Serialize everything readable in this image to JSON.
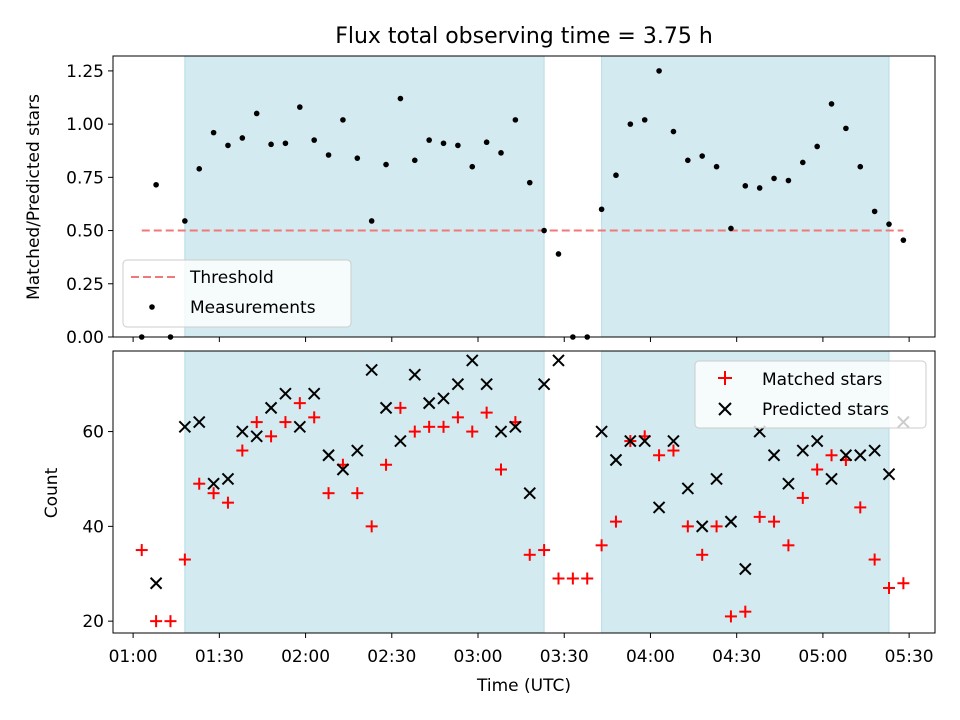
{
  "figure": {
    "title": "Flux total observing time = 3.75 h"
  },
  "chart_data": [
    {
      "type": "scatter",
      "title": "Flux total observing time = 3.75 h",
      "xlabel": "",
      "ylabel": "Matched/Predicted stars",
      "xlim": [
        "00:53",
        "05:39"
      ],
      "ylim": [
        0,
        1.32
      ],
      "yticks": [
        0.0,
        0.25,
        0.5,
        0.75,
        1.0,
        1.25
      ],
      "ytick_labels": [
        "0.00",
        "0.25",
        "0.50",
        "0.75",
        "1.00",
        "1.25"
      ],
      "xticks": [
        "01:00",
        "01:30",
        "02:00",
        "02:30",
        "03:00",
        "03:30",
        "04:00",
        "04:30",
        "05:00",
        "05:30"
      ],
      "legend": {
        "position": "lower-left",
        "entries": [
          "Threshold",
          "Measurements"
        ]
      },
      "shaded_spans": [
        {
          "start": "01:18",
          "end": "03:23"
        },
        {
          "start": "03:43",
          "end": "05:23"
        }
      ],
      "threshold": {
        "name": "Threshold",
        "value": 0.5,
        "x_start": "01:03",
        "x_end": "05:28",
        "color": "#f07878",
        "style": "dashed"
      },
      "series": [
        {
          "name": "Measurements",
          "color": "#000000",
          "marker": "dot",
          "x": [
            "01:03",
            "01:08",
            "01:13",
            "01:18",
            "01:23",
            "01:28",
            "01:33",
            "01:38",
            "01:43",
            "01:48",
            "01:53",
            "01:58",
            "02:03",
            "02:08",
            "02:13",
            "02:18",
            "02:23",
            "02:28",
            "02:33",
            "02:38",
            "02:43",
            "02:48",
            "02:53",
            "02:58",
            "03:03",
            "03:08",
            "03:13",
            "03:18",
            "03:23",
            "03:28",
            "03:33",
            "03:38",
            "03:43",
            "03:48",
            "03:53",
            "03:58",
            "04:03",
            "04:08",
            "04:13",
            "04:18",
            "04:23",
            "04:28",
            "04:33",
            "04:38",
            "04:43",
            "04:48",
            "04:53",
            "04:58",
            "05:03",
            "05:08",
            "05:13",
            "05:18",
            "05:23",
            "05:28"
          ],
          "y": [
            0.0,
            0.715,
            0.0,
            0.545,
            0.79,
            0.96,
            0.9,
            0.935,
            1.05,
            0.905,
            0.91,
            1.08,
            0.925,
            0.855,
            1.02,
            0.84,
            0.545,
            0.81,
            1.12,
            0.83,
            0.925,
            0.91,
            0.9,
            0.8,
            0.915,
            0.865,
            1.02,
            0.725,
            0.5,
            0.39,
            0.0,
            0.0,
            0.6,
            0.76,
            1.0,
            1.02,
            1.25,
            0.965,
            0.83,
            0.85,
            0.8,
            0.51,
            0.71,
            0.7,
            0.745,
            0.735,
            0.82,
            0.895,
            1.095,
            0.98,
            0.8,
            0.59,
            0.53,
            0.455
          ]
        }
      ]
    },
    {
      "type": "scatter",
      "title": "",
      "xlabel": "Time (UTC)",
      "ylabel": "Count",
      "xlim": [
        "00:53",
        "05:39"
      ],
      "ylim": [
        17.5,
        77
      ],
      "yticks": [
        20,
        40,
        60
      ],
      "ytick_labels": [
        "20",
        "40",
        "60"
      ],
      "xticks": [
        "01:00",
        "01:30",
        "02:00",
        "02:30",
        "03:00",
        "03:30",
        "04:00",
        "04:30",
        "05:00",
        "05:30"
      ],
      "legend": {
        "position": "upper-right",
        "entries": [
          "Matched stars",
          "Predicted stars"
        ]
      },
      "shaded_spans": [
        {
          "start": "01:18",
          "end": "03:23"
        },
        {
          "start": "03:43",
          "end": "05:23"
        }
      ],
      "series": [
        {
          "name": "Matched stars",
          "color": "#ff0000",
          "marker": "plus",
          "x": [
            "01:03",
            "01:08",
            "01:13",
            "01:18",
            "01:23",
            "01:28",
            "01:33",
            "01:38",
            "01:43",
            "01:48",
            "01:53",
            "01:58",
            "02:03",
            "02:08",
            "02:13",
            "02:18",
            "02:23",
            "02:28",
            "02:33",
            "02:38",
            "02:43",
            "02:48",
            "02:53",
            "02:58",
            "03:03",
            "03:08",
            "03:13",
            "03:18",
            "03:23",
            "03:28",
            "03:33",
            "03:38",
            "03:43",
            "03:48",
            "03:53",
            "03:58",
            "04:03",
            "04:08",
            "04:13",
            "04:18",
            "04:23",
            "04:28",
            "04:33",
            "04:38",
            "04:43",
            "04:48",
            "04:53",
            "04:58",
            "05:03",
            "05:08",
            "05:13",
            "05:18",
            "05:23",
            "05:28"
          ],
          "y": [
            35,
            20,
            20,
            33,
            49,
            47,
            45,
            56,
            62,
            59,
            62,
            66,
            63,
            47,
            53,
            47,
            40,
            53,
            65,
            60,
            61,
            61,
            63,
            60,
            64,
            52,
            62,
            34,
            35,
            29,
            29,
            29,
            36,
            41,
            58,
            59,
            55,
            56,
            40,
            34,
            40,
            21,
            22,
            42,
            41,
            36,
            46,
            52,
            55,
            54,
            44,
            33,
            27,
            28
          ]
        },
        {
          "name": "Predicted stars",
          "color": "#000000",
          "marker": "x",
          "x": [
            "01:08",
            "01:18",
            "01:23",
            "01:28",
            "01:33",
            "01:38",
            "01:43",
            "01:48",
            "01:53",
            "01:58",
            "02:03",
            "02:08",
            "02:13",
            "02:18",
            "02:23",
            "02:28",
            "02:33",
            "02:38",
            "02:43",
            "02:48",
            "02:53",
            "02:58",
            "03:03",
            "03:08",
            "03:13",
            "03:18",
            "03:23",
            "03:28",
            "03:43",
            "03:48",
            "03:53",
            "03:58",
            "04:03",
            "04:08",
            "04:13",
            "04:18",
            "04:23",
            "04:28",
            "04:33",
            "04:38",
            "04:43",
            "04:48",
            "04:53",
            "04:58",
            "05:03",
            "05:08",
            "05:13",
            "05:18",
            "05:23",
            "05:28"
          ],
          "y": [
            28,
            61,
            62,
            49,
            50,
            60,
            59,
            65,
            68,
            61,
            68,
            55,
            52,
            56,
            73,
            65,
            58,
            72,
            66,
            67,
            70,
            75,
            70,
            60,
            61,
            47,
            70,
            75,
            60,
            54,
            58,
            58,
            44,
            58,
            48,
            40,
            50,
            41,
            31,
            60,
            55,
            49,
            56,
            58,
            50,
            55,
            55,
            56,
            51,
            62
          ]
        }
      ]
    }
  ],
  "colors": {
    "shade": "#d3eaf0",
    "threshold": "#f07878",
    "matched": "#ff0000",
    "predicted": "#000000",
    "measurement": "#000000"
  }
}
